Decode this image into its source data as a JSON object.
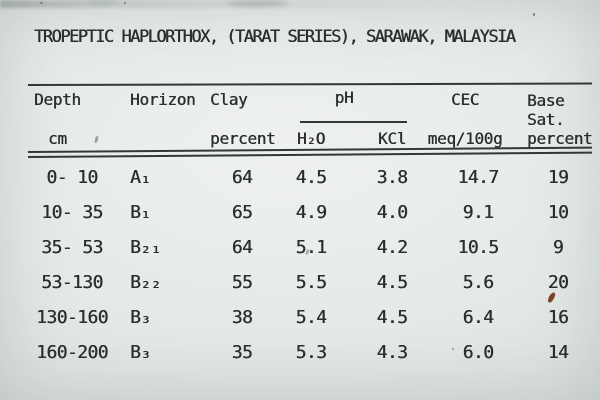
{
  "title": "TROPEPTIC HAPLORTHOX, (TARAT SERIES), SARAWAK, MALAYSIA",
  "table": {
    "header": {
      "depth": "Depth",
      "depth_unit": "cm",
      "horizon": "Horizon",
      "clay": "Clay",
      "clay_unit": "percent",
      "ph_group": "pH",
      "ph_h2o": "H₂O",
      "ph_kcl": "KCl",
      "cec": "CEC",
      "cec_unit": "meq/100g",
      "base_line1": "Base",
      "base_line2": "Sat.",
      "base_line3": "percent"
    },
    "rows": [
      {
        "depth": "0- 10",
        "horizon": "A₁",
        "clay": "64",
        "ph_h2o": "4.5",
        "ph_kcl": "3.8",
        "cec": "14.7",
        "base_sat": "19"
      },
      {
        "depth": "10- 35",
        "horizon": "B₁",
        "clay": "65",
        "ph_h2o": "4.9",
        "ph_kcl": "4.0",
        "cec": "9.1",
        "base_sat": "10"
      },
      {
        "depth": "35- 53",
        "horizon": "B₂₁",
        "clay": "64",
        "ph_h2o": "5.1",
        "ph_kcl": "4.2",
        "cec": "10.5",
        "base_sat": "9"
      },
      {
        "depth": "53-130",
        "horizon": "B₂₂",
        "clay": "55",
        "ph_h2o": "5.5",
        "ph_kcl": "4.5",
        "cec": "5.6",
        "base_sat": "20"
      },
      {
        "depth": "130-160",
        "horizon": "B₃",
        "clay": "38",
        "ph_h2o": "5.4",
        "ph_kcl": "4.5",
        "cec": "6.4",
        "base_sat": "16"
      },
      {
        "depth": "160-200",
        "horizon": "B₃",
        "clay": "35",
        "ph_h2o": "5.3",
        "ph_kcl": "4.3",
        "cec": "6.0",
        "base_sat": "14"
      }
    ]
  },
  "colors": {
    "background": "#e4e9e7",
    "text": "#2b2d2f",
    "rule": "#34373a",
    "fleck": "#7b4426"
  }
}
